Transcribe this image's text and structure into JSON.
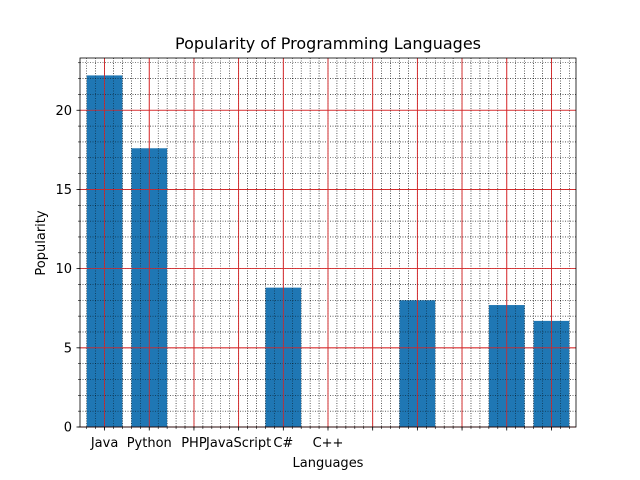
{
  "chart_data": {
    "type": "bar",
    "title": "Popularity of Programming Languages",
    "xlabel": "Languages",
    "ylabel": "Popularity",
    "x_tick_labels": [
      "Java",
      "Python",
      "PHP",
      "JavaScript",
      "C#",
      "C++"
    ],
    "bars": [
      {
        "x": 0,
        "value": 22.2
      },
      {
        "x": 1,
        "value": 17.6
      },
      {
        "x": 4,
        "value": 8.8
      },
      {
        "x": 7,
        "value": 8.0
      },
      {
        "x": 9,
        "value": 7.7
      },
      {
        "x": 10,
        "value": 6.7
      }
    ],
    "xlim": [
      -0.55,
      10.55
    ],
    "ylim": [
      0,
      23.3
    ],
    "y_ticks": [
      0,
      5,
      10,
      15,
      20
    ],
    "grid": {
      "major": true,
      "minor": true,
      "major_color": "#d62728",
      "minor_color": "#000000"
    },
    "bar_color": "#1f77b4"
  }
}
